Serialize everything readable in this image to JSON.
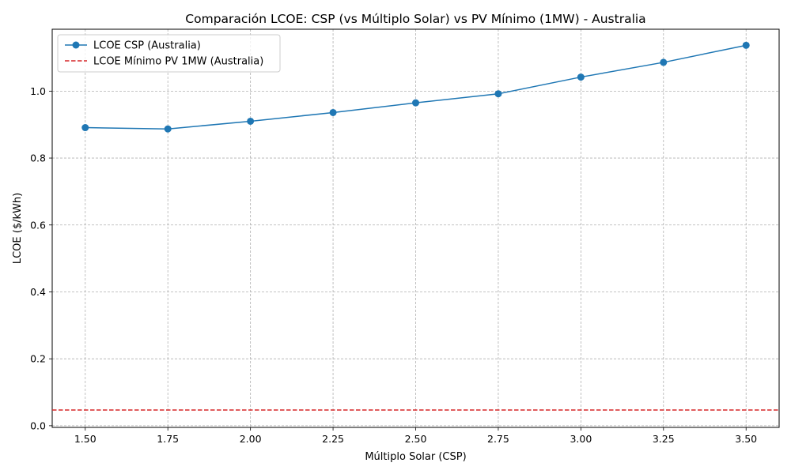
{
  "chart_data": {
    "type": "line",
    "title": "Comparación LCOE: CSP (vs Múltiplo Solar) vs PV Mínimo (1MW) - Australia",
    "xlabel": "Múltiplo Solar (CSP)",
    "ylabel": "LCOE ($/kWh)",
    "xlim": [
      1.4,
      3.6
    ],
    "ylim": [
      -0.005,
      1.185
    ],
    "x_ticks": [
      "1.50",
      "1.75",
      "2.00",
      "2.25",
      "2.50",
      "2.75",
      "3.00",
      "3.25",
      "3.50"
    ],
    "y_ticks": [
      "0.0",
      "0.2",
      "0.4",
      "0.6",
      "0.8",
      "1.0"
    ],
    "grid": true,
    "legend_position": "top-left",
    "series": [
      {
        "name": "LCOE CSP (Australia)",
        "style": "solid-line-circle-markers",
        "color": "#1f77b4",
        "x": [
          1.5,
          1.75,
          2.0,
          2.25,
          2.5,
          2.75,
          3.0,
          3.25,
          3.5
        ],
        "y": [
          0.891,
          0.887,
          0.91,
          0.936,
          0.965,
          0.992,
          1.042,
          1.086,
          1.137
        ]
      },
      {
        "name": "LCOE Mínimo PV 1MW (Australia)",
        "style": "dashed-horizontal-line",
        "color": "#d62728",
        "y": 0.047
      }
    ]
  }
}
